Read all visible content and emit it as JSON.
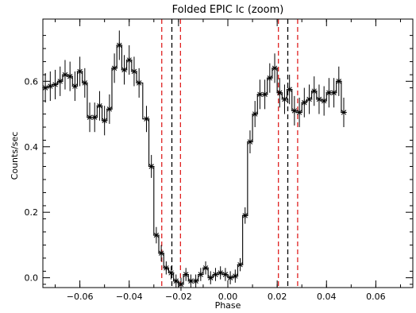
{
  "chart_data": {
    "type": "line",
    "title": "Folded EPIC lc (zoom)",
    "xlabel": "Phase",
    "ylabel": "Counts/sec",
    "xlim": [
      -0.075,
      0.075
    ],
    "ylim": [
      -0.03,
      0.79
    ],
    "x_ticks": [
      -0.06,
      -0.04,
      -0.02,
      0.0,
      0.02,
      0.04,
      0.06
    ],
    "x_tick_labels": [
      "−0.06",
      "−0.04",
      "−0.02",
      "0.00",
      "0.02",
      "0.04",
      "0.06"
    ],
    "y_ticks": [
      0.0,
      0.2,
      0.4,
      0.6
    ],
    "y_tick_labels": [
      "0.0",
      "0.2",
      "0.4",
      "0.6"
    ],
    "series": [
      {
        "step": "mid",
        "marker": "asterisk",
        "color": "#000000",
        "points": [
          {
            "x": -0.074,
            "y": 0.58,
            "err": 0.045
          },
          {
            "x": -0.072,
            "y": 0.585,
            "err": 0.045
          },
          {
            "x": -0.07,
            "y": 0.59,
            "err": 0.045
          },
          {
            "x": -0.068,
            "y": 0.6,
            "err": 0.045
          },
          {
            "x": -0.066,
            "y": 0.62,
            "err": 0.045
          },
          {
            "x": -0.064,
            "y": 0.615,
            "err": 0.045
          },
          {
            "x": -0.062,
            "y": 0.585,
            "err": 0.045
          },
          {
            "x": -0.06,
            "y": 0.63,
            "err": 0.045
          },
          {
            "x": -0.058,
            "y": 0.595,
            "err": 0.045
          },
          {
            "x": -0.056,
            "y": 0.49,
            "err": 0.045
          },
          {
            "x": -0.054,
            "y": 0.49,
            "err": 0.045
          },
          {
            "x": -0.052,
            "y": 0.525,
            "err": 0.045
          },
          {
            "x": -0.05,
            "y": 0.48,
            "err": 0.045
          },
          {
            "x": -0.048,
            "y": 0.515,
            "err": 0.045
          },
          {
            "x": -0.046,
            "y": 0.64,
            "err": 0.045
          },
          {
            "x": -0.044,
            "y": 0.71,
            "err": 0.045
          },
          {
            "x": -0.042,
            "y": 0.635,
            "err": 0.045
          },
          {
            "x": -0.04,
            "y": 0.665,
            "err": 0.045
          },
          {
            "x": -0.038,
            "y": 0.63,
            "err": 0.045
          },
          {
            "x": -0.036,
            "y": 0.595,
            "err": 0.045
          },
          {
            "x": -0.033,
            "y": 0.485,
            "err": 0.04
          },
          {
            "x": -0.031,
            "y": 0.34,
            "err": 0.035
          },
          {
            "x": -0.029,
            "y": 0.13,
            "err": 0.025
          },
          {
            "x": -0.027,
            "y": 0.075,
            "err": 0.025
          },
          {
            "x": -0.025,
            "y": 0.03,
            "err": 0.02
          },
          {
            "x": -0.023,
            "y": 0.015,
            "err": 0.02
          },
          {
            "x": -0.021,
            "y": -0.01,
            "err": 0.02
          },
          {
            "x": -0.019,
            "y": -0.02,
            "err": 0.02
          },
          {
            "x": -0.017,
            "y": 0.01,
            "err": 0.02
          },
          {
            "x": -0.015,
            "y": -0.01,
            "err": 0.02
          },
          {
            "x": -0.013,
            "y": -0.01,
            "err": 0.02
          },
          {
            "x": -0.011,
            "y": 0.01,
            "err": 0.02
          },
          {
            "x": -0.009,
            "y": 0.03,
            "err": 0.02
          },
          {
            "x": -0.007,
            "y": 0.0,
            "err": 0.02
          },
          {
            "x": -0.005,
            "y": 0.01,
            "err": 0.02
          },
          {
            "x": -0.003,
            "y": 0.015,
            "err": 0.02
          },
          {
            "x": -0.001,
            "y": 0.01,
            "err": 0.02
          },
          {
            "x": 0.001,
            "y": 0.0,
            "err": 0.02
          },
          {
            "x": 0.003,
            "y": 0.005,
            "err": 0.02
          },
          {
            "x": 0.005,
            "y": 0.04,
            "err": 0.02
          },
          {
            "x": 0.007,
            "y": 0.19,
            "err": 0.025
          },
          {
            "x": 0.009,
            "y": 0.415,
            "err": 0.035
          },
          {
            "x": 0.011,
            "y": 0.5,
            "err": 0.04
          },
          {
            "x": 0.013,
            "y": 0.56,
            "err": 0.045
          },
          {
            "x": 0.015,
            "y": 0.56,
            "err": 0.045
          },
          {
            "x": 0.017,
            "y": 0.61,
            "err": 0.045
          },
          {
            "x": 0.019,
            "y": 0.64,
            "err": 0.045
          },
          {
            "x": 0.021,
            "y": 0.565,
            "err": 0.045
          },
          {
            "x": 0.023,
            "y": 0.545,
            "err": 0.045
          },
          {
            "x": 0.025,
            "y": 0.575,
            "err": 0.045
          },
          {
            "x": 0.027,
            "y": 0.51,
            "err": 0.045
          },
          {
            "x": 0.029,
            "y": 0.505,
            "err": 0.045
          },
          {
            "x": 0.031,
            "y": 0.535,
            "err": 0.045
          },
          {
            "x": 0.033,
            "y": 0.545,
            "err": 0.045
          },
          {
            "x": 0.035,
            "y": 0.57,
            "err": 0.045
          },
          {
            "x": 0.037,
            "y": 0.545,
            "err": 0.045
          },
          {
            "x": 0.039,
            "y": 0.54,
            "err": 0.045
          },
          {
            "x": 0.041,
            "y": 0.565,
            "err": 0.045
          },
          {
            "x": 0.043,
            "y": 0.565,
            "err": 0.045
          },
          {
            "x": 0.045,
            "y": 0.6,
            "err": 0.045
          },
          {
            "x": 0.047,
            "y": 0.505,
            "err": 0.045
          }
        ]
      }
    ],
    "vertical_lines": [
      {
        "x": -0.0268,
        "color": "#e02020",
        "style": "dashed"
      },
      {
        "x": -0.0227,
        "color": "#000000",
        "style": "dashed"
      },
      {
        "x": -0.0192,
        "color": "#e02020",
        "style": "dashed"
      },
      {
        "x": 0.0205,
        "color": "#e02020",
        "style": "dashed"
      },
      {
        "x": 0.0243,
        "color": "#000000",
        "style": "dashed"
      },
      {
        "x": 0.0283,
        "color": "#e02020",
        "style": "dashed"
      }
    ],
    "grid": false,
    "colors": {
      "data": "#000000",
      "marker_red": "#e02020",
      "marker_black": "#000000",
      "axis": "#000000",
      "background": "#ffffff"
    }
  }
}
